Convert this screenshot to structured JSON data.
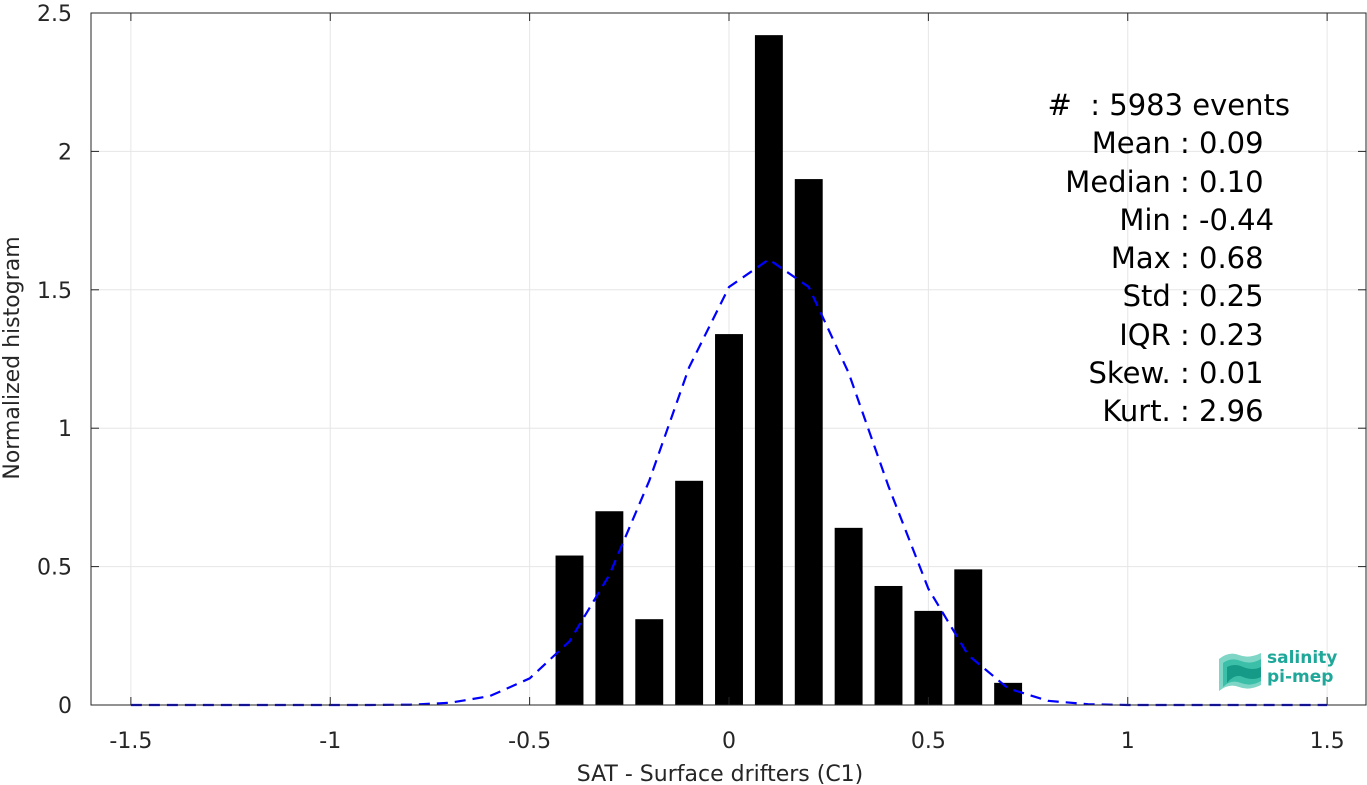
{
  "chart_data": {
    "type": "bar",
    "xlabel": "SAT - Surface drifters (C1)",
    "ylabel": "Normalized histogram",
    "xlim": [
      -1.6,
      1.6
    ],
    "ylim": [
      0,
      2.5
    ],
    "xticks": [
      -1.5,
      -1,
      -0.5,
      0,
      0.5,
      1,
      1.5
    ],
    "xtick_labels": [
      "-1.5",
      "-1",
      "-0.5",
      "0",
      "0.5",
      "1",
      "1.5"
    ],
    "yticks": [
      0,
      0.5,
      1,
      1.5,
      2,
      2.5
    ],
    "ytick_labels": [
      "0",
      "0.5",
      "1",
      "1.5",
      "2",
      "2.5"
    ],
    "grid": true,
    "bar_width": 0.07,
    "bars": {
      "x": [
        -0.4,
        -0.3,
        -0.2,
        -0.1,
        0.0,
        0.1,
        0.2,
        0.3,
        0.4,
        0.5,
        0.6,
        0.7
      ],
      "values": [
        0.54,
        0.7,
        0.31,
        0.81,
        1.34,
        2.42,
        1.9,
        0.64,
        0.43,
        0.34,
        0.49,
        0.08
      ],
      "color": "#000000"
    },
    "fit_curve": {
      "style": "dashed",
      "color": "#0000ff",
      "x": [
        -1.5,
        -1.4,
        -1.3,
        -1.2,
        -1.1,
        -1.0,
        -0.9,
        -0.8,
        -0.7,
        -0.6,
        -0.5,
        -0.4,
        -0.3,
        -0.2,
        -0.1,
        0.0,
        0.1,
        0.2,
        0.3,
        0.4,
        0.5,
        0.6,
        0.7,
        0.8,
        0.9,
        1.0,
        1.1,
        1.2,
        1.3,
        1.4,
        1.5
      ],
      "y": [
        0,
        0,
        0,
        0,
        0,
        0,
        0,
        0.001,
        0.008,
        0.032,
        0.096,
        0.23,
        0.47,
        0.81,
        1.22,
        1.51,
        1.61,
        1.51,
        1.2,
        0.79,
        0.42,
        0.18,
        0.06,
        0.015,
        0.003,
        0,
        0,
        0,
        0,
        0,
        0
      ]
    }
  },
  "stats": [
    {
      "key": "#  ",
      "val": ": 5983 events"
    },
    {
      "key": "Mean ",
      "val": ": 0.09"
    },
    {
      "key": "Median ",
      "val": ": 0.10"
    },
    {
      "key": "Min ",
      "val": ": -0.44"
    },
    {
      "key": "Max ",
      "val": ": 0.68"
    },
    {
      "key": "Std ",
      "val": ": 0.25"
    },
    {
      "key": "IQR ",
      "val": ": 0.23"
    },
    {
      "key": "Skew. ",
      "val": ": 0.01"
    },
    {
      "key": "Kurt. ",
      "val": ": 2.96"
    }
  ],
  "logo": {
    "line1": "salinity",
    "line2": "pi-mep",
    "color": "#1fa89a"
  }
}
